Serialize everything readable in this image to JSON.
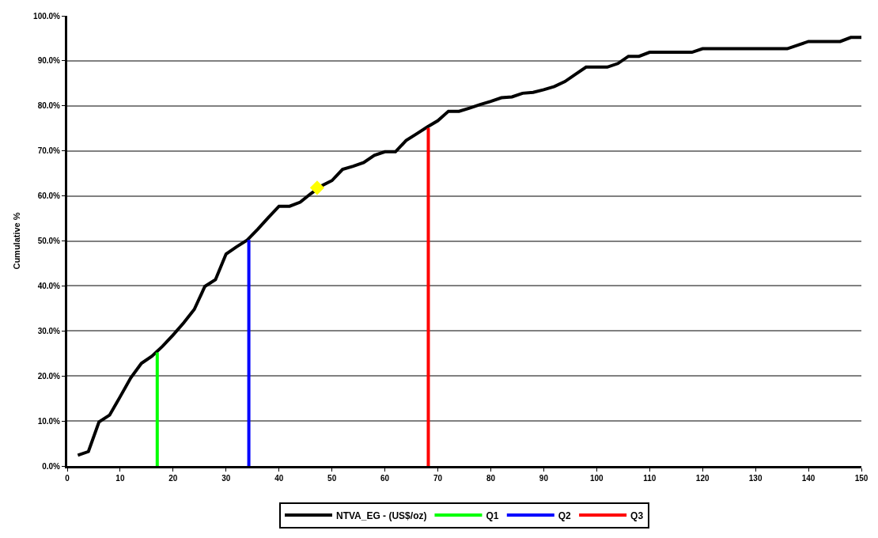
{
  "chart_data": {
    "type": "line",
    "ylabel": "Cumulative %",
    "xlim": [
      0,
      150
    ],
    "xticks": [
      0,
      10,
      20,
      30,
      40,
      50,
      60,
      70,
      80,
      90,
      100,
      110,
      120,
      130,
      140,
      150
    ],
    "ylim": [
      0,
      100
    ],
    "yticks": [
      {
        "value": 0,
        "label": "0.0%"
      },
      {
        "value": 10,
        "label": "10.0%"
      },
      {
        "value": 20,
        "label": "20.0%"
      },
      {
        "value": 30,
        "label": "30.0%"
      },
      {
        "value": 40,
        "label": "40.0%"
      },
      {
        "value": 50,
        "label": "50.0%"
      },
      {
        "value": 60,
        "label": "60.0%"
      },
      {
        "value": 70,
        "label": "70.0%"
      },
      {
        "value": 80,
        "label": "80.0%"
      },
      {
        "value": 90,
        "label": "90.0%"
      },
      {
        "value": 100,
        "label": "100.0%"
      }
    ],
    "grid": "y",
    "legend": "bottom",
    "series": [
      {
        "name": "NTVA_EG - (US$/oz)",
        "color": "#000000",
        "marker": "none",
        "x": [
          2,
          4,
          6,
          8,
          10,
          12,
          14,
          16,
          18,
          20,
          22,
          24,
          26,
          28,
          30,
          32,
          34,
          36,
          38,
          40,
          42,
          44,
          46,
          48,
          50,
          52,
          54,
          56,
          58,
          60,
          62,
          64,
          66,
          68,
          70,
          72,
          74,
          76,
          78,
          80,
          82,
          84,
          86,
          88,
          90,
          92,
          94,
          96,
          98,
          100,
          102,
          104,
          106,
          108,
          110,
          112,
          114,
          116,
          118,
          120,
          136,
          140,
          146,
          148,
          150
        ],
        "values": [
          2.4,
          3.2,
          9.8,
          11.3,
          15.4,
          19.6,
          22.8,
          24.4,
          26.6,
          29.1,
          31.8,
          34.8,
          39.9,
          41.4,
          47.1,
          48.7,
          50.2,
          52.6,
          55.2,
          57.7,
          57.7,
          58.6,
          60.5,
          62.2,
          63.4,
          65.9,
          66.6,
          67.4,
          69.0,
          69.8,
          69.8,
          72.3,
          73.8,
          75.3,
          76.7,
          78.8,
          78.8,
          79.5,
          80.3,
          81.0,
          81.8,
          82.0,
          82.8,
          83.0,
          83.6,
          84.3,
          85.4,
          87.0,
          88.6,
          88.6,
          88.6,
          89.4,
          91.0,
          91.0,
          91.9,
          91.9,
          91.9,
          91.9,
          91.9,
          92.7,
          92.7,
          94.3,
          94.3,
          95.2,
          95.2
        ]
      },
      {
        "name": "Q1",
        "color": "#00ff00",
        "marker": "none",
        "x": [
          17,
          17
        ],
        "values": [
          0,
          25.2
        ]
      },
      {
        "name": "Q2",
        "color": "#0000ff",
        "marker": "none",
        "x": [
          34.3,
          34.3
        ],
        "values": [
          0,
          50.2
        ]
      },
      {
        "name": "Q3",
        "color": "#ff0000",
        "marker": "none",
        "x": [
          68.2,
          68.2
        ],
        "values": [
          0,
          75.1
        ]
      },
      {
        "color": "#ffff00",
        "type": "scatter",
        "marker": "diamond",
        "x": [
          47.2
        ],
        "values": [
          61.8
        ]
      }
    ]
  }
}
